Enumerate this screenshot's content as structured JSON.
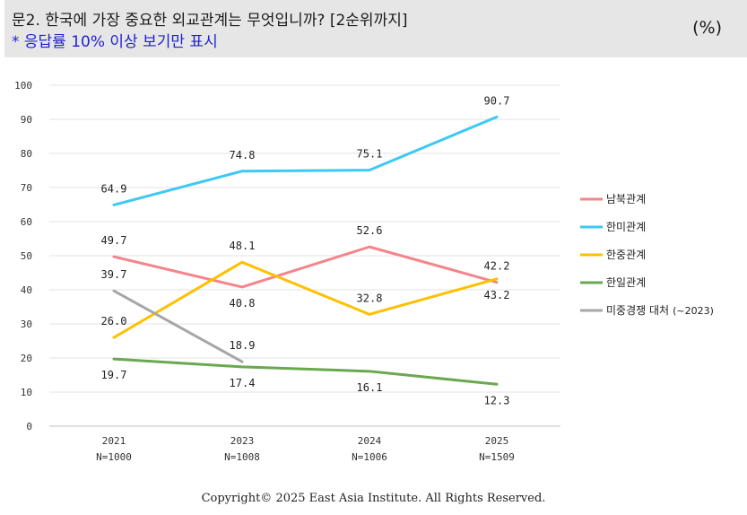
{
  "header": {
    "title": "문2. 한국에 가장 중요한 외교관계는 무엇입니까? [2순위까지]",
    "subtitle": "* 응답률 10% 이상 보기만 표시",
    "unit": "(%)"
  },
  "footer": {
    "copyright": "Copyright© 2025 East Asia Institute. All Rights Reserved."
  },
  "chart_data": {
    "type": "line",
    "categories": [
      "2021",
      "2023",
      "2024",
      "2025"
    ],
    "sample_sizes": [
      "N=1000",
      "N=1008",
      "N=1006",
      "N=1509"
    ],
    "ylim": [
      0,
      100
    ],
    "yticks": [
      0,
      10,
      20,
      30,
      40,
      50,
      60,
      70,
      80,
      90,
      100
    ],
    "grid": true,
    "legend_position": "right",
    "series": [
      {
        "name": "남북관계",
        "color": "#f4858a",
        "values": [
          49.7,
          40.8,
          52.6,
          42.2
        ],
        "label_pos": [
          "above",
          "below",
          "above",
          "above"
        ]
      },
      {
        "name": "한미관계",
        "color": "#3ec8f6",
        "values": [
          64.9,
          74.8,
          75.1,
          90.7
        ],
        "label_pos": [
          "above",
          "above",
          "above",
          "above"
        ]
      },
      {
        "name": "한중관계",
        "color": "#ffc000",
        "values": [
          26.0,
          48.1,
          32.8,
          43.2
        ],
        "label_pos": [
          "above",
          "above",
          "above",
          "below"
        ]
      },
      {
        "name": "한일관계",
        "color": "#6aa84f",
        "values": [
          19.7,
          17.4,
          16.1,
          12.3
        ],
        "label_pos": [
          "below",
          "below",
          "below",
          "below"
        ]
      },
      {
        "name": "미중경쟁 대처",
        "legend_suffix": "(~2023)",
        "color": "#a6a6a6",
        "values": [
          39.7,
          18.9,
          null,
          null
        ],
        "label_pos": [
          "above",
          "above",
          null,
          null
        ]
      }
    ]
  }
}
